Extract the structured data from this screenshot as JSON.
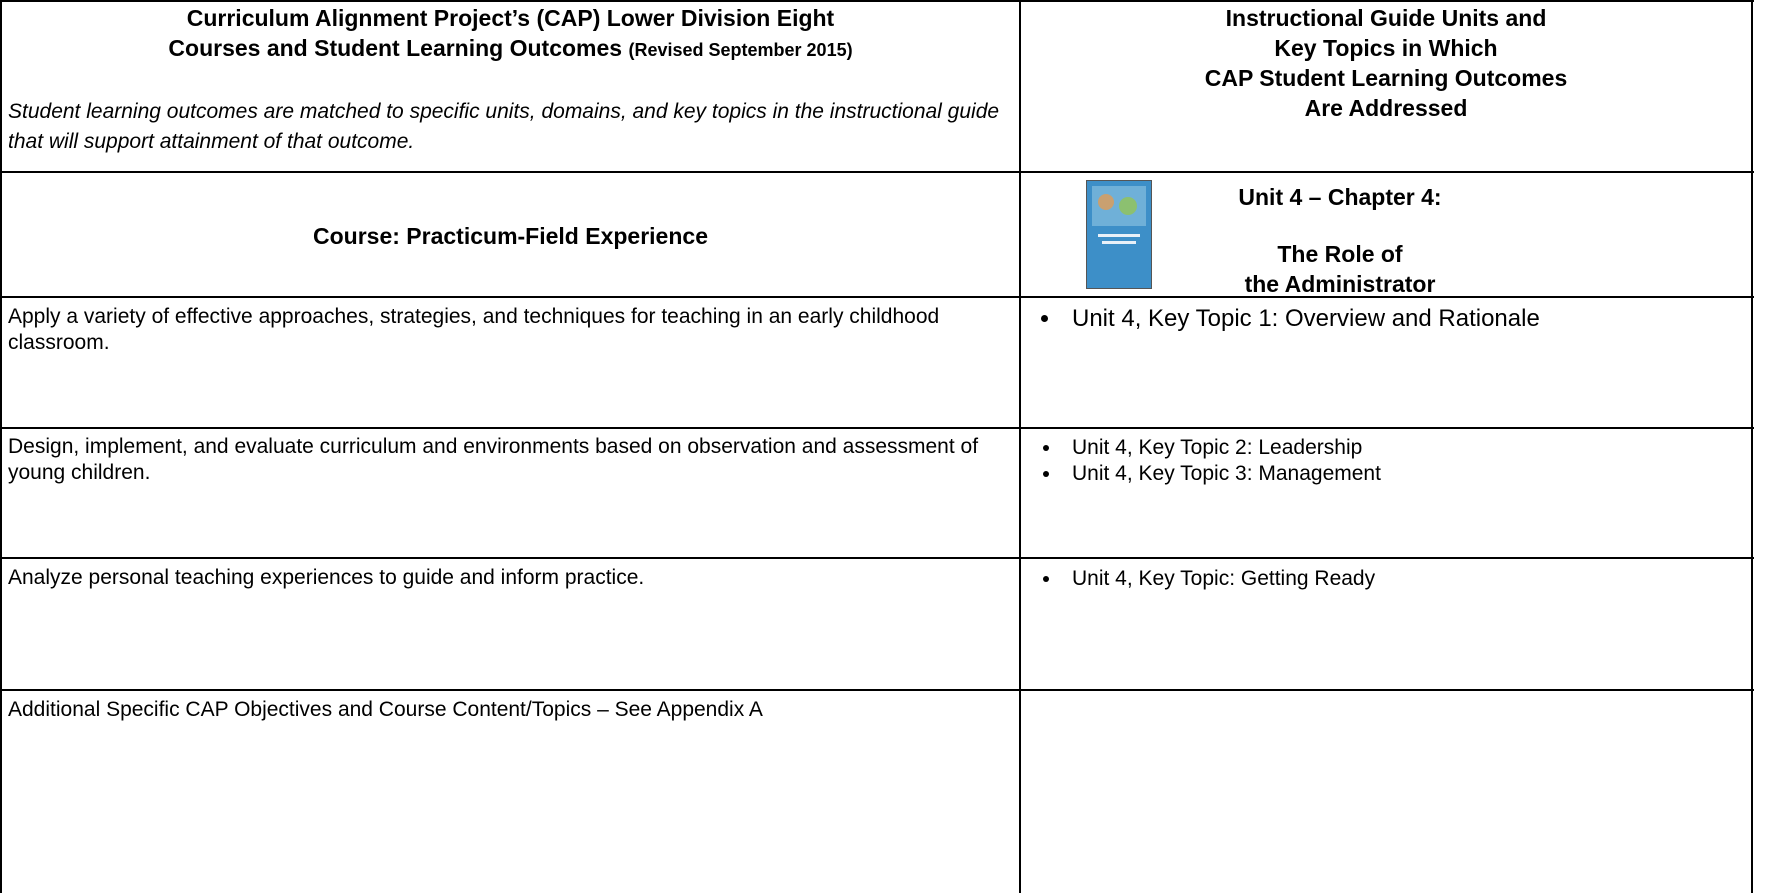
{
  "header": {
    "left": {
      "title_lines": [
        "Curriculum Alignment Project’s (CAP) Lower Division Eight",
        "Courses and Student Learning Outcomes"
      ],
      "revised": "(Revised September 2015)",
      "subtitle": "Student learning outcomes are matched to specific units, domains, and key topics in the instructional guide that will support attainment of that outcome."
    },
    "right": {
      "title_lines": [
        "Instructional Guide Units and",
        "Key Topics in Which",
        "CAP Student Learning Outcomes",
        "Are Addressed"
      ]
    }
  },
  "course": {
    "label": "Course:  Practicum-Field Experience",
    "unit_title": "Unit 4 – Chapter 4:",
    "unit_subtitle_lines": [
      "The Role of",
      "the Administrator"
    ]
  },
  "rows": [
    {
      "outcome": "Apply a variety of effective approaches, strategies, and techniques for teaching in an early childhood classroom.",
      "topics": [
        "Unit 4, Key Topic 1: Overview and Rationale"
      ]
    },
    {
      "outcome": "Design, implement, and evaluate curriculum and environments based on observation and assessment of young children.",
      "topics": [
        "Unit 4, Key Topic 2: Leadership",
        "Unit 4, Key Topic 3: Management"
      ]
    },
    {
      "outcome": "Analyze personal teaching experiences to guide and inform practice.",
      "topics": [
        "Unit 4, Key Topic: Getting Ready"
      ]
    },
    {
      "outcome": "Additional Specific CAP Objectives and Course Content/Topics – See Appendix A",
      "topics": []
    }
  ]
}
